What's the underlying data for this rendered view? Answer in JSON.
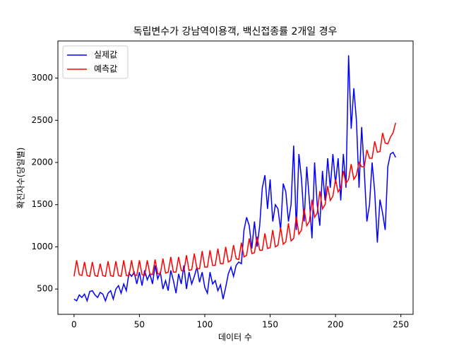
{
  "chart_data": {
    "type": "line",
    "title": "독립변수가 강남역이용객, 백신접종률 2개일 경우",
    "x_label": "데이터 수",
    "y_label": "확진자수(당일별)",
    "x": [
      0,
      2,
      4,
      6,
      8,
      10,
      12,
      14,
      16,
      18,
      20,
      22,
      24,
      26,
      28,
      30,
      32,
      34,
      36,
      38,
      40,
      42,
      44,
      46,
      48,
      50,
      52,
      54,
      56,
      58,
      60,
      62,
      64,
      66,
      68,
      70,
      72,
      74,
      76,
      78,
      80,
      82,
      84,
      86,
      88,
      90,
      92,
      94,
      96,
      98,
      100,
      102,
      104,
      106,
      108,
      110,
      112,
      114,
      116,
      118,
      120,
      122,
      124,
      126,
      128,
      130,
      132,
      134,
      136,
      138,
      140,
      142,
      144,
      146,
      148,
      150,
      152,
      154,
      156,
      158,
      160,
      162,
      164,
      166,
      168,
      170,
      172,
      174,
      176,
      178,
      180,
      182,
      184,
      186,
      188,
      190,
      192,
      194,
      196,
      198,
      200,
      202,
      204,
      206,
      208,
      210,
      212,
      214,
      216,
      218,
      220,
      222,
      224,
      226,
      228,
      230,
      232,
      234,
      236,
      238,
      240,
      242,
      244,
      246
    ],
    "series": [
      {
        "name": "실제값",
        "color": "#0000ff",
        "values": [
          380,
          360,
          430,
          400,
          440,
          360,
          470,
          480,
          430,
          400,
          460,
          440,
          360,
          450,
          480,
          380,
          500,
          540,
          450,
          560,
          480,
          690,
          650,
          700,
          560,
          700,
          540,
          720,
          610,
          680,
          560,
          780,
          620,
          700,
          500,
          600,
          480,
          720,
          600,
          450,
          680,
          560,
          780,
          500,
          700,
          560,
          650,
          760,
          580,
          700,
          520,
          450,
          700,
          560,
          600,
          480,
          550,
          380,
          520,
          680,
          760,
          650,
          780,
          820,
          800,
          1200,
          1350,
          1250,
          980,
          1300,
          1000,
          1250,
          1700,
          1850,
          1450,
          1800,
          1300,
          1500,
          1450,
          1200,
          1750,
          1650,
          1300,
          1500,
          2200,
          1200,
          2100,
          1800,
          1300,
          1950,
          1550,
          1100,
          2000,
          1500,
          1250,
          1900,
          1550,
          2050,
          1700,
          2100,
          1750,
          2050,
          1550,
          2100,
          1700,
          3270,
          2400,
          2880,
          2500,
          1700,
          2420,
          1900,
          1300,
          1500,
          2000,
          1650,
          1050,
          1560,
          1400,
          1200,
          1950,
          2100,
          2120,
          2060
        ]
      },
      {
        "name": "예측값",
        "color": "#ff0000",
        "values": [
          650,
          840,
          670,
          660,
          820,
          660,
          650,
          820,
          660,
          650,
          800,
          660,
          650,
          830,
          660,
          650,
          830,
          660,
          650,
          840,
          660,
          660,
          840,
          670,
          660,
          840,
          670,
          660,
          840,
          680,
          670,
          850,
          680,
          680,
          860,
          690,
          700,
          880,
          700,
          700,
          880,
          720,
          710,
          900,
          720,
          730,
          920,
          740,
          740,
          950,
          760,
          760,
          960,
          780,
          780,
          980,
          800,
          800,
          1000,
          820,
          840,
          1020,
          860,
          850,
          1050,
          880,
          900,
          1100,
          920,
          930,
          1120,
          960,
          960,
          1160,
          980,
          990,
          1200,
          1000,
          1020,
          1230,
          1030,
          1060,
          1280,
          1070,
          1100,
          1360,
          1150,
          1200,
          1450,
          1250,
          1300,
          1560,
          1350,
          1400,
          1660,
          1450,
          1500,
          1720,
          1550,
          1600,
          1800,
          1650,
          1700,
          1900,
          1750,
          1800,
          1980,
          1800,
          1850,
          2000,
          1950,
          1950,
          2150,
          2050,
          2050,
          2250,
          2120,
          2130,
          2350,
          2230,
          2220,
          2300,
          2350,
          2470
        ]
      }
    ],
    "xlim": [
      -12.35,
      259.35
    ],
    "ylim": [
      200,
      3440
    ],
    "xticks": [
      0,
      50,
      100,
      150,
      200,
      250
    ],
    "yticks": [
      500,
      1000,
      1500,
      2000,
      2500,
      3000
    ],
    "legend": "upper left"
  }
}
